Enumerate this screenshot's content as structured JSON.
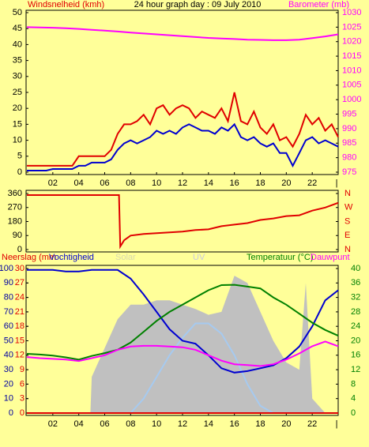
{
  "chart_data": [
    {
      "type": "line",
      "title": "24 hour graph day : 09 July 2010",
      "ylabel": "Windsnelheid (kmh)",
      "y2label": "Barometer (mb)",
      "xlim": [
        0,
        24
      ],
      "xticks": [
        {
          "value": 2,
          "label": "02"
        },
        {
          "value": 4,
          "label": "04"
        },
        {
          "value": 6,
          "label": "06"
        },
        {
          "value": 8,
          "label": "08"
        },
        10,
        12,
        14,
        16,
        18,
        20,
        22,
        {
          "value": 24,
          "label": "|"
        }
      ],
      "ylim": [
        0,
        50
      ],
      "yticks": [
        0,
        5,
        10,
        15,
        20,
        25,
        30,
        35,
        40,
        45,
        50
      ],
      "y2lim": [
        975,
        1030
      ],
      "y2ticks": [
        975,
        980,
        985,
        990,
        995,
        1000,
        1005,
        1010,
        1015,
        1020,
        1025,
        1030
      ],
      "series": [
        {
          "color": "#E00000",
          "x": [
            0,
            0.5,
            1,
            1.5,
            2,
            2.5,
            3,
            3.5,
            4,
            4.5,
            5,
            5.5,
            6,
            6.5,
            7,
            7.5,
            8,
            8.5,
            9,
            9.5,
            10,
            10.5,
            11,
            11.5,
            12,
            12.5,
            13,
            13.5,
            14,
            14.5,
            15,
            15.5,
            16,
            16.5,
            17,
            17.5,
            18,
            18.5,
            19,
            19.5,
            20,
            20.5,
            21,
            21.5,
            22,
            22.5,
            23,
            23.5,
            24
          ],
          "values": [
            2,
            2,
            2,
            2,
            2,
            2,
            2,
            2,
            5,
            5,
            5,
            5,
            5,
            7,
            12,
            15,
            15,
            16,
            18,
            15,
            20,
            21,
            18,
            20,
            21,
            20,
            17,
            19,
            18,
            17,
            20,
            16,
            25,
            16,
            15,
            19,
            14,
            12,
            15,
            10,
            11,
            8,
            12,
            18,
            15,
            17,
            13,
            15,
            11
          ]
        },
        {
          "color": "#0000D0",
          "x": [
            0,
            0.5,
            1,
            1.5,
            2,
            2.5,
            3,
            3.5,
            4,
            4.5,
            5,
            5.5,
            6,
            6.5,
            7,
            7.5,
            8,
            8.5,
            9,
            9.5,
            10,
            10.5,
            11,
            11.5,
            12,
            12.5,
            13,
            13.5,
            14,
            14.5,
            15,
            15.5,
            16,
            16.5,
            17,
            17.5,
            18,
            18.5,
            19,
            19.5,
            20,
            20.5,
            21,
            21.5,
            22,
            22.5,
            23,
            23.5,
            24
          ],
          "values": [
            0.5,
            0.5,
            0.5,
            0.5,
            1,
            1,
            1,
            1,
            2,
            2,
            3,
            3,
            3,
            4,
            7,
            9,
            10,
            9,
            10,
            11,
            13,
            12,
            13,
            12,
            14,
            15,
            14,
            13,
            13,
            12,
            14,
            13,
            15,
            11,
            10,
            11,
            9,
            8,
            9,
            6,
            6,
            2,
            6,
            10,
            11,
            9,
            10,
            9,
            8
          ]
        },
        {
          "color": "#FF00FF",
          "axis": "y2",
          "x": [
            0,
            1,
            2,
            3,
            4,
            5,
            6,
            7,
            8,
            9,
            10,
            11,
            12,
            13,
            14,
            15,
            16,
            17,
            18,
            19,
            20,
            21,
            22,
            23,
            24
          ],
          "values": [
            1025,
            1024.9,
            1024.8,
            1024.6,
            1024.4,
            1024.1,
            1023.8,
            1023.5,
            1023.1,
            1022.8,
            1022.5,
            1022.2,
            1021.9,
            1021.6,
            1021.3,
            1021.1,
            1020.9,
            1020.7,
            1020.6,
            1020.5,
            1020.5,
            1020.7,
            1021.2,
            1021.8,
            1022.5
          ]
        }
      ]
    },
    {
      "type": "line",
      "xlim": [
        0,
        24
      ],
      "ylim": [
        0,
        360
      ],
      "yticks": [
        0,
        90,
        180,
        270,
        360
      ],
      "y2lim": [
        0,
        360
      ],
      "y2ticks": [
        {
          "value": 0,
          "label": "N"
        },
        {
          "value": 90,
          "label": "E"
        },
        {
          "value": 180,
          "label": "S"
        },
        {
          "value": 270,
          "label": "W"
        },
        {
          "value": 360,
          "label": "N"
        }
      ],
      "series": [
        {
          "color": "#E00000",
          "x": [
            0,
            7.1,
            7.2,
            7.5,
            8,
            9,
            10,
            11,
            12,
            13,
            14,
            15,
            16,
            17,
            18,
            19,
            20,
            21,
            22,
            23,
            24
          ],
          "values": [
            350,
            350,
            20,
            60,
            90,
            100,
            105,
            110,
            115,
            125,
            130,
            150,
            160,
            170,
            190,
            200,
            215,
            220,
            250,
            270,
            300
          ]
        }
      ]
    },
    {
      "type": "line",
      "ylabel": "Neerslag (mm",
      "ylabel2": "Vochtigheid",
      "label_solar": "Solar",
      "label_uv": "UV",
      "y2label": "Temperatuur (°C)",
      "y2label2": "Dauwpunt",
      "xlim": [
        0,
        24
      ],
      "xticks": [
        {
          "value": 2,
          "label": "02"
        },
        {
          "value": 4,
          "label": "04"
        },
        {
          "value": 6,
          "label": "06"
        },
        {
          "value": 8,
          "label": "08"
        },
        10,
        12,
        14,
        16,
        18,
        20,
        22,
        {
          "value": 24,
          "label": "|"
        }
      ],
      "ylim": [
        0,
        100
      ],
      "yticks": [
        0,
        10,
        20,
        30,
        40,
        50,
        60,
        70,
        80,
        90,
        100
      ],
      "y3lim": [
        0,
        30
      ],
      "y3ticks": [
        0,
        3,
        6,
        9,
        12,
        15,
        18,
        21,
        24,
        27,
        30
      ],
      "y2lim": [
        0,
        40
      ],
      "y2ticks": [
        0,
        4,
        8,
        12,
        16,
        20,
        24,
        28,
        32,
        36,
        40
      ],
      "series": [
        {
          "type": "area",
          "color": "#C0C0C0",
          "x": [
            0,
            4.9,
            5,
            6,
            7,
            8,
            9,
            10,
            11,
            12,
            13,
            14,
            15,
            16,
            17,
            18,
            19,
            20,
            21,
            21.5,
            22,
            23,
            24
          ],
          "values": [
            0,
            0,
            25,
            45,
            65,
            75,
            75,
            78,
            78,
            75,
            72,
            68,
            70,
            95,
            90,
            70,
            50,
            35,
            30,
            90,
            10,
            0,
            0
          ]
        },
        {
          "color": "#A6CAF0",
          "x": [
            0,
            8,
            9,
            10,
            11,
            12,
            13,
            14,
            15,
            16,
            17,
            18,
            19,
            24
          ],
          "values": [
            0,
            0,
            10,
            25,
            40,
            52,
            62,
            62,
            55,
            40,
            20,
            5,
            0,
            0
          ]
        },
        {
          "color": "#E00000",
          "axis": "y3",
          "x": [
            0,
            24
          ],
          "values": [
            0,
            0
          ]
        },
        {
          "color": "#0000D0",
          "x": [
            0,
            1,
            2,
            3,
            4,
            5,
            6,
            7,
            8,
            9,
            10,
            11,
            12,
            13,
            14,
            15,
            16,
            17,
            18,
            19,
            20,
            21,
            22,
            23,
            24
          ],
          "values": [
            99,
            99,
            99,
            98,
            98,
            99,
            99,
            99,
            93,
            82,
            70,
            58,
            50,
            48,
            40,
            31,
            28,
            29,
            31,
            33,
            38,
            46,
            60,
            78,
            85
          ]
        },
        {
          "color": "#008000",
          "axis": "y2",
          "x": [
            0,
            1,
            2,
            3,
            4,
            5,
            6,
            7,
            8,
            9,
            10,
            11,
            12,
            13,
            14,
            15,
            16,
            17,
            18,
            19,
            20,
            21,
            22,
            23,
            24
          ],
          "values": [
            16.4,
            16.2,
            15.9,
            15.4,
            14.8,
            15.8,
            16.6,
            17.5,
            19.5,
            22.5,
            25.5,
            28,
            30,
            32,
            34,
            35.4,
            35.5,
            35,
            34.5,
            32,
            30,
            27.5,
            25,
            23,
            21.4
          ]
        },
        {
          "color": "#FF00FF",
          "axis": "y2",
          "x": [
            0,
            1,
            2,
            3,
            4,
            5,
            6,
            7,
            8,
            9,
            10,
            11,
            12,
            13,
            14,
            15,
            16,
            17,
            18,
            19,
            20,
            21,
            22,
            23,
            24
          ],
          "values": [
            15.5,
            15.2,
            15,
            14.8,
            14.4,
            15.2,
            16,
            17.5,
            18.4,
            18.6,
            18.6,
            18.4,
            18.2,
            17.5,
            16,
            14.5,
            13.5,
            13.3,
            13,
            13.5,
            14.8,
            16.5,
            18.5,
            19.8,
            18.5
          ]
        }
      ]
    }
  ]
}
